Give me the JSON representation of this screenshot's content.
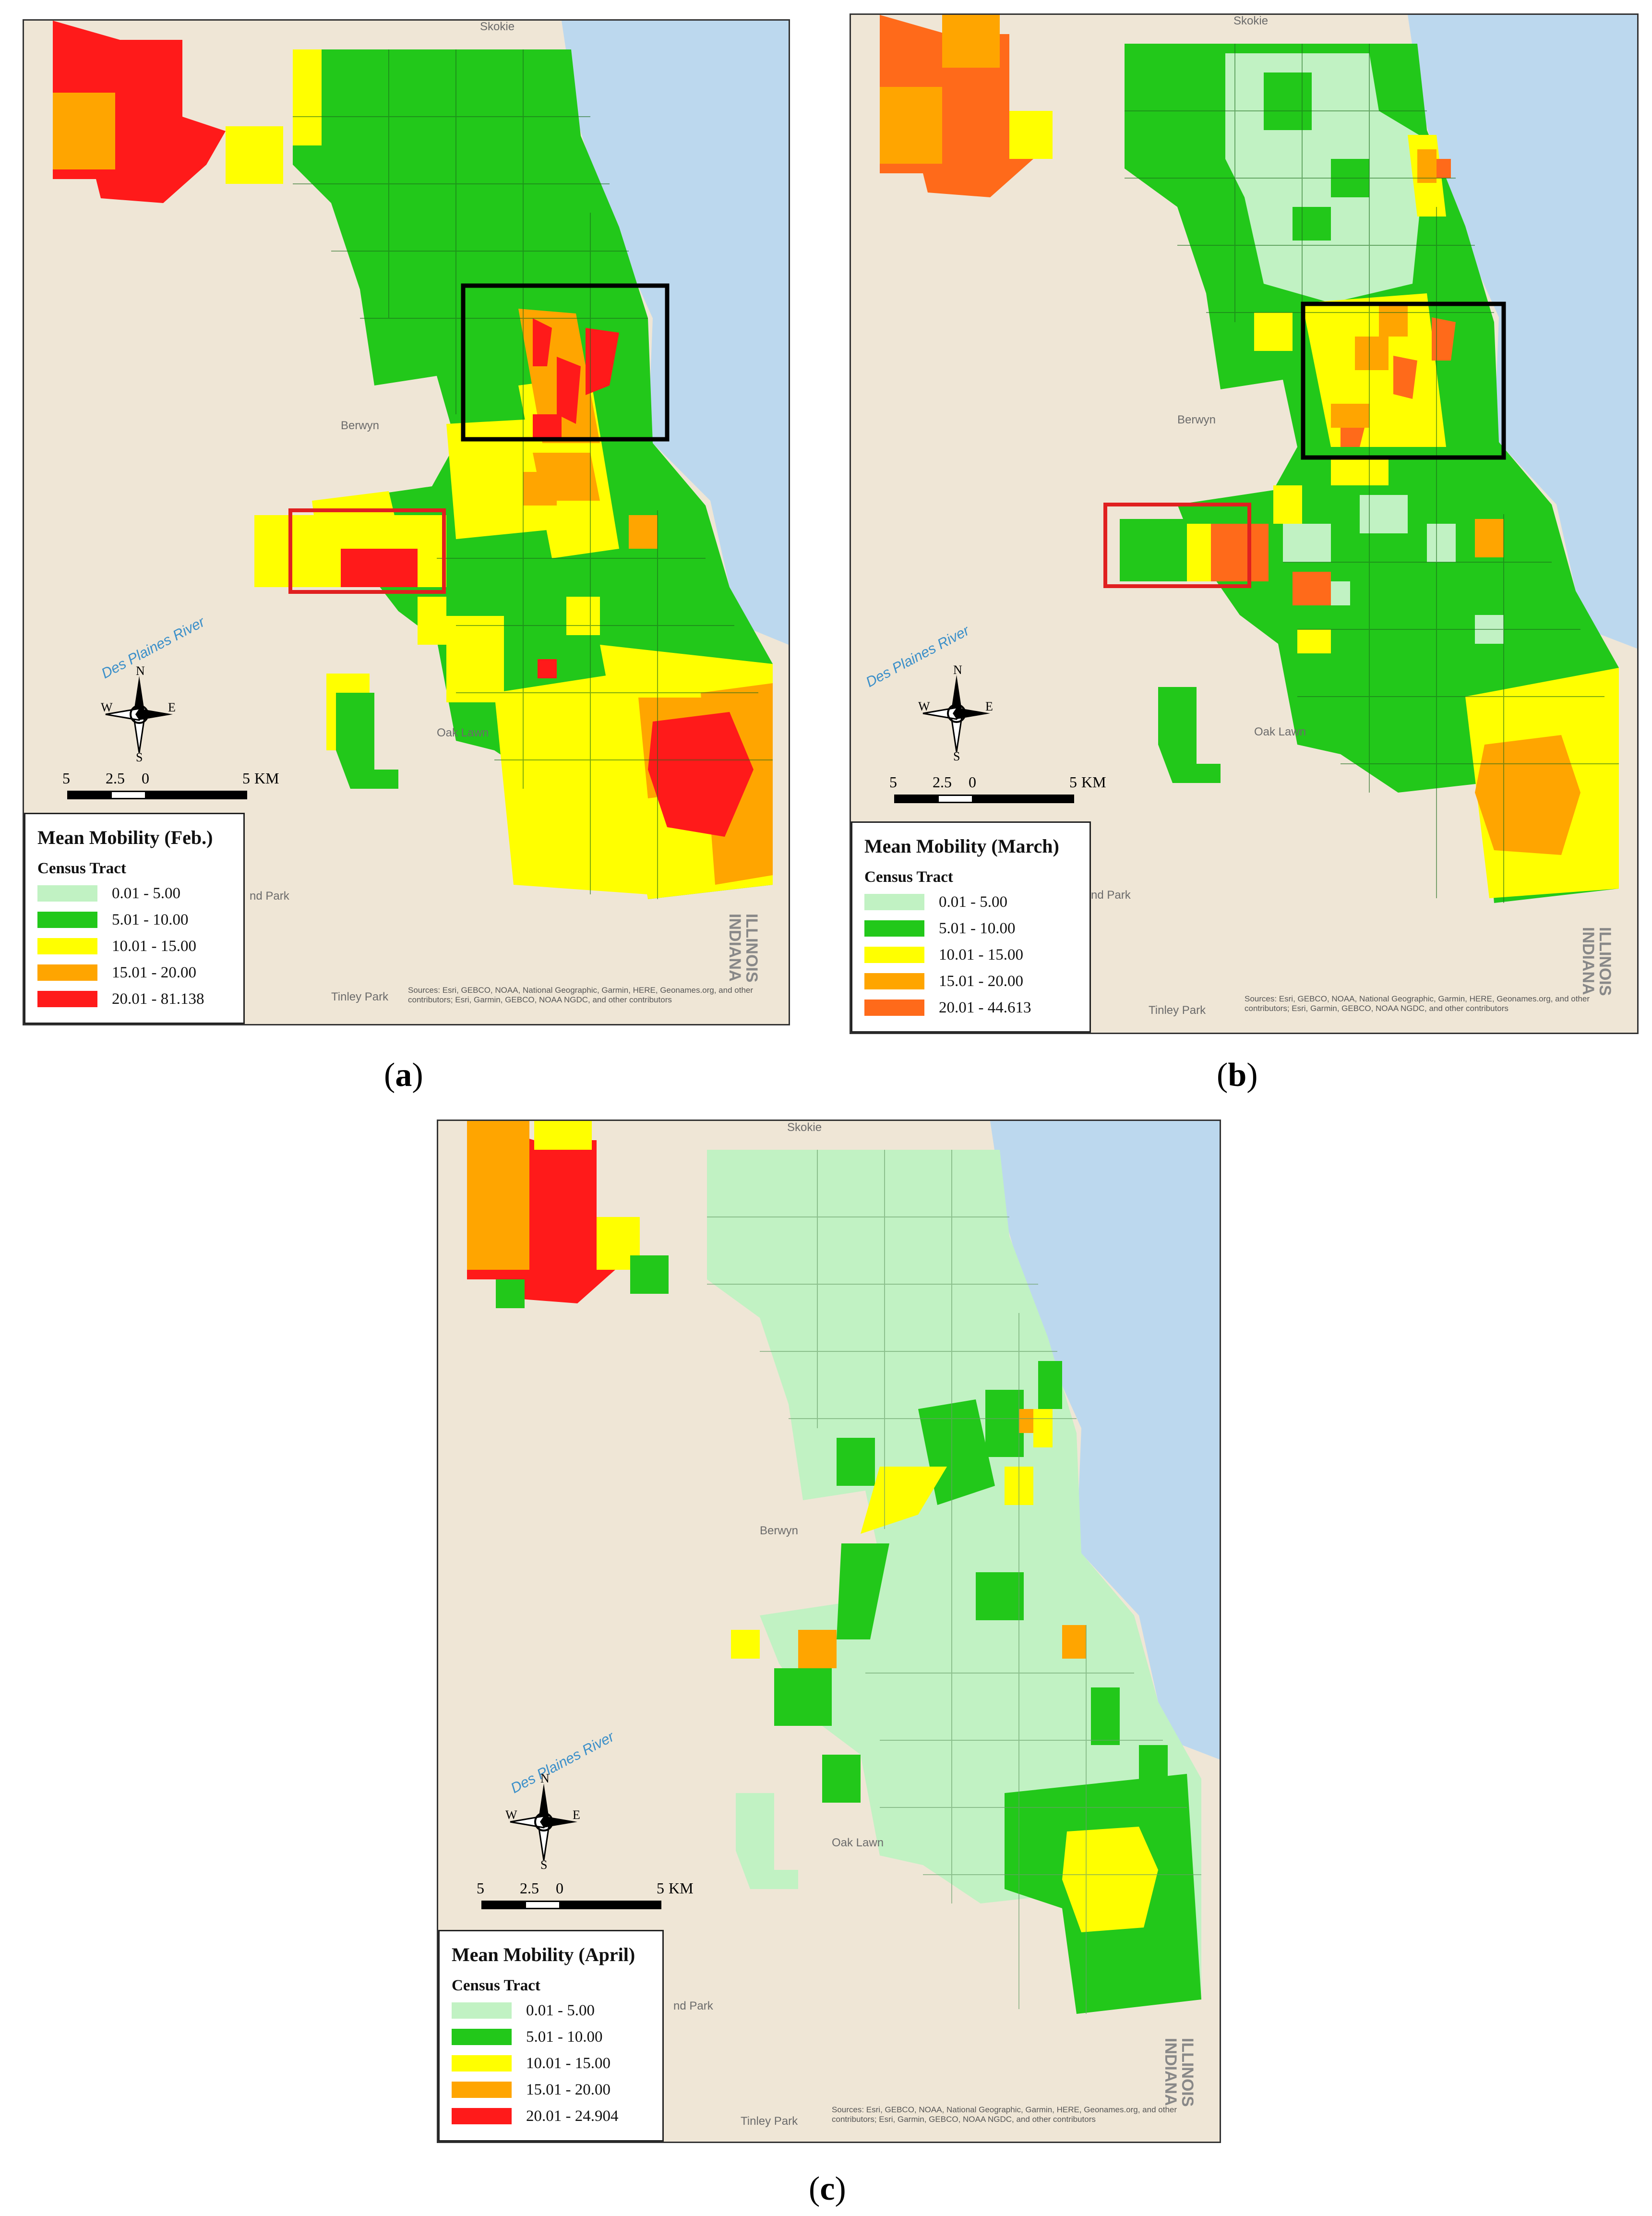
{
  "colors": {
    "water": "#bcd8ee",
    "land": "#efe6d6",
    "class1": "#c1f2c3",
    "class2": "#22c81a",
    "class3": "#ffff00",
    "class4": "#ffa500",
    "class5_feb": "#ff1a1a",
    "class5_march": "#ff6a1a",
    "class5_april": "#ff1a1a",
    "highlight_black": "#000000",
    "highlight_red": "#e02020"
  },
  "panels": [
    {
      "id": "a",
      "caption_letter": "a",
      "legend_title": "Mean Mobility (Feb.)",
      "legend_subtitle": "Census Tract",
      "legend_items": [
        "0.01 - 5.00",
        "5.01 - 10.00",
        "10.01 - 15.00",
        "15.01 - 20.00",
        "20.01 - 81.138"
      ],
      "sources": "Sources: Esri, GEBCO, NOAA, National Geographic, Garmin, HERE, Geonames.org, and other contributors; Esri, Garmin, GEBCO, NOAA NGDC, and other contributors"
    },
    {
      "id": "b",
      "caption_letter": "b",
      "legend_title": "Mean Mobility (March)",
      "legend_subtitle": "Census Tract",
      "legend_items": [
        "0.01 - 5.00",
        "5.01 - 10.00",
        "10.01 - 15.00",
        "15.01 - 20.00",
        "20.01 - 44.613"
      ],
      "sources": "Sources: Esri, GEBCO, NOAA, National Geographic, Garmin, HERE, Geonames.org, and other contributors; Esri, Garmin, GEBCO, NOAA NGDC, and other contributors"
    },
    {
      "id": "c",
      "caption_letter": "c",
      "legend_title": "Mean Mobility (April)",
      "legend_subtitle": "Census Tract",
      "legend_items": [
        "0.01 - 5.00",
        "5.01 - 10.00",
        "10.01 - 15.00",
        "15.01 - 20.00",
        "20.01 - 24.904"
      ],
      "sources": "Sources: Esri, GEBCO, NOAA, National Geographic, Garmin, HERE, Geonames.org, and other contributors; Esri, Garmin, GEBCO, NOAA NGDC, and other contributors"
    }
  ],
  "basemap": {
    "place_berwyn": "Berwyn",
    "place_oak_lawn": "Oak Lawn",
    "place_skokie": "Skokie",
    "place_tinley_park": "Tinley Park",
    "place_orland": "nd Park",
    "river": "Des Plaines River",
    "state_illinois": "ILLINOIS",
    "state_indiana": "INDIANA"
  },
  "scale": {
    "l0": "5",
    "l1": "2.5",
    "l2": "0",
    "l3": "5",
    "unit": "KM"
  },
  "compass": {
    "n": "N",
    "s": "S",
    "e": "E",
    "w": "W"
  }
}
